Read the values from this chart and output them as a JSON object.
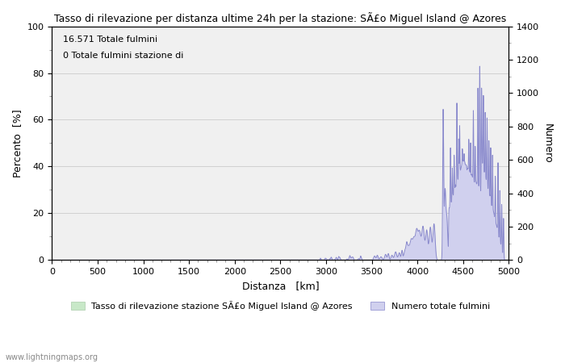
{
  "title": "Tasso di rilevazione per distanza ultime 24h per la stazione: SÃ£o Miguel Island @ Azores",
  "xlabel": "Distanza   [km]",
  "ylabel_left": "Percento  [%]",
  "ylabel_right": "Numero",
  "annotation_line1": "16.571 Totale fulmini",
  "annotation_line2": "0 Totale fulmini stazione di",
  "legend_label1": "Tasso di rilevazione stazione SÃ£o Miguel Island @ Azores",
  "legend_label2": "Numero totale fulmini",
  "watermark": "www.lightningmaps.org",
  "xlim": [
    0,
    5000
  ],
  "ylim_left": [
    0,
    100
  ],
  "ylim_right": [
    0,
    1400
  ],
  "xticks": [
    0,
    500,
    1000,
    1500,
    2000,
    2500,
    3000,
    3500,
    4000,
    4500,
    5000
  ],
  "yticks_left": [
    0,
    20,
    40,
    60,
    80,
    100
  ],
  "yticks_right": [
    0,
    200,
    400,
    600,
    800,
    1000,
    1200,
    1400
  ],
  "bg_color": "#ffffff",
  "plot_bg_color": "#f0f0f0",
  "grid_color": "#cccccc",
  "line_color_blue": "#8888cc",
  "fill_color_blue": "#d0d0ee",
  "fill_color_green": "#c8e8c8",
  "minor_tick_color": "#888888"
}
